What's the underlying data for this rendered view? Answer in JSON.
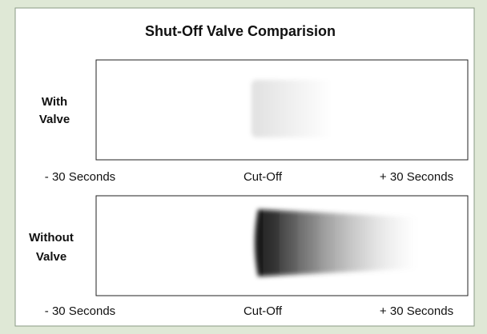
{
  "title": "Shut-Off Valve Comparision",
  "panels": [
    {
      "label": [
        "With",
        "Valve"
      ],
      "axis_labels": [
        "- 30 Seconds",
        "Cut-Off",
        "+ 30 Seconds"
      ]
    },
    {
      "label": [
        "Without",
        "Valve"
      ],
      "axis_labels": [
        "- 30 Seconds",
        "Cut-Off",
        "+ 30 Seconds"
      ]
    }
  ]
}
